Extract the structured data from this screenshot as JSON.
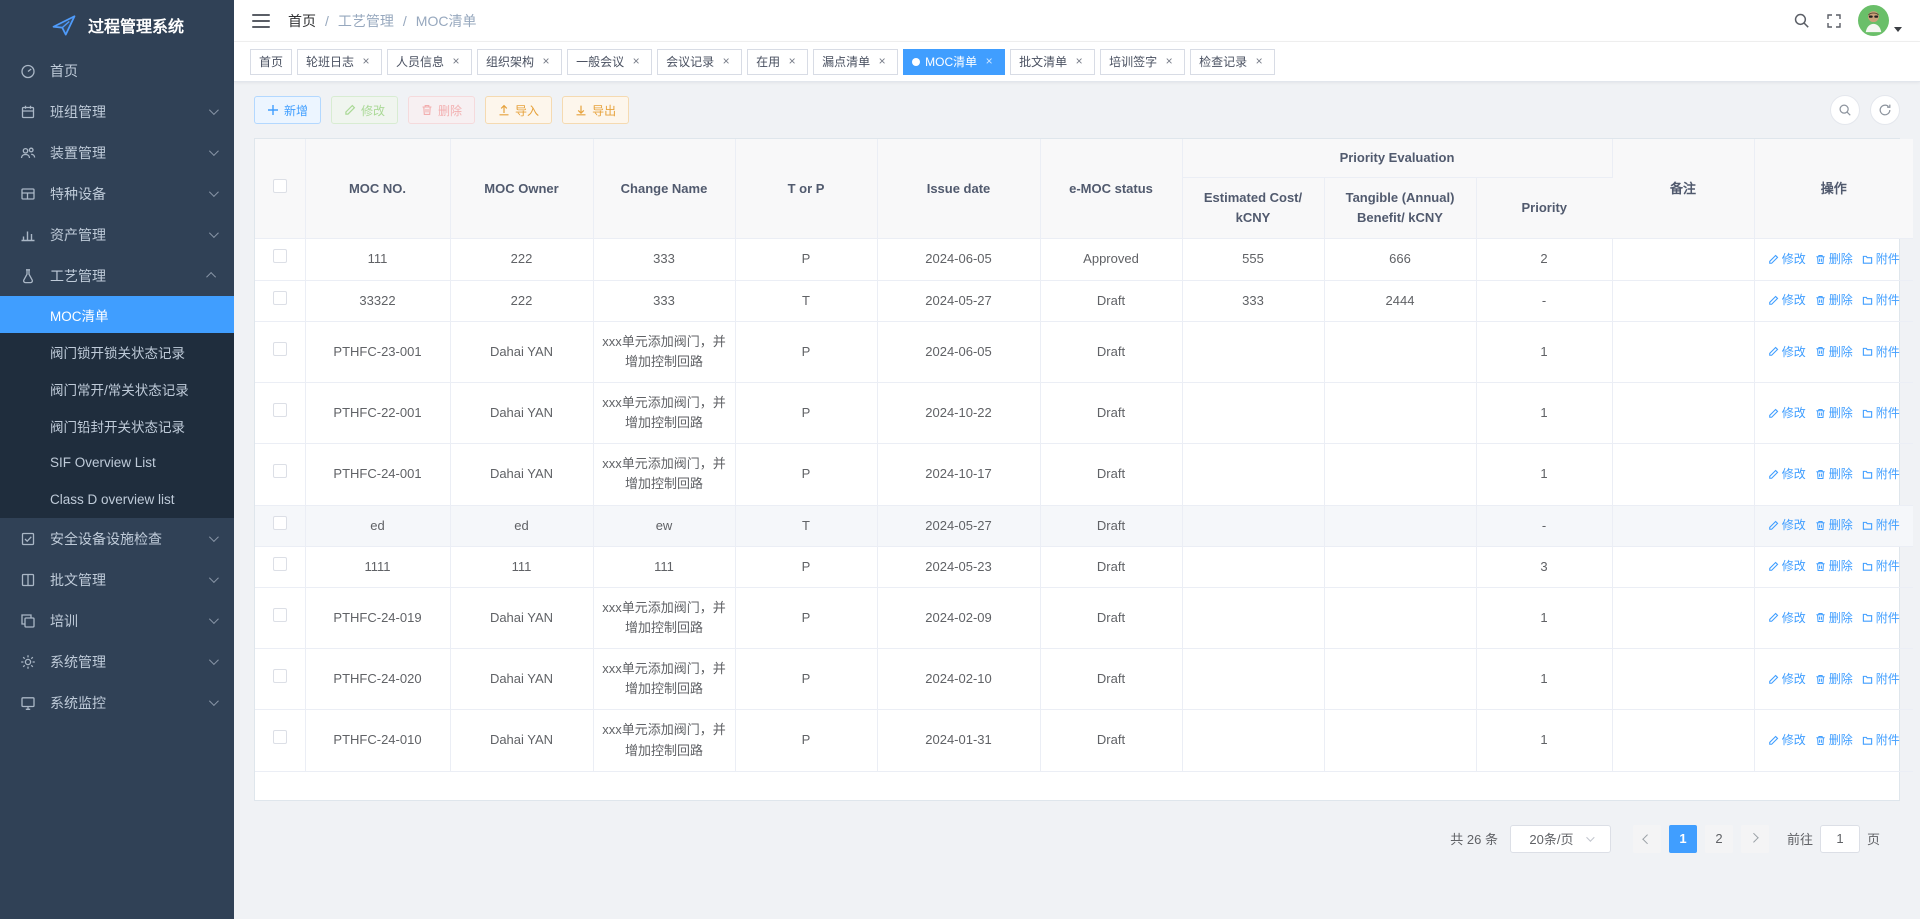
{
  "app": {
    "title": "过程管理系统"
  },
  "colors": {
    "accent": "#409eff",
    "sidebar_bg": "#304156",
    "submenu_bg": "#1f2d3d",
    "success": "#67c23a",
    "danger": "#f56c6c",
    "warning": "#e6a23c",
    "avatar_bg": "#6abf69"
  },
  "icons": [
    "logo-plane-icon",
    "dashboard-icon",
    "team-icon",
    "device-icon",
    "special-equipment-icon",
    "asset-icon",
    "process-icon",
    "safety-check-icon",
    "approval-icon",
    "training-icon",
    "settings-icon",
    "monitor-icon",
    "hamburger-icon",
    "search-icon",
    "fullscreen-icon",
    "avatar",
    "caret-down-icon",
    "plus-icon",
    "edit-icon",
    "delete-icon",
    "upload-icon",
    "download-icon",
    "refresh-icon",
    "folder-icon"
  ],
  "sidebar": {
    "items": [
      {
        "label": "首页"
      },
      {
        "label": "班组管理"
      },
      {
        "label": "装置管理"
      },
      {
        "label": "特种设备"
      },
      {
        "label": "资产管理"
      },
      {
        "label": "工艺管理",
        "expanded": true,
        "children": [
          "MOC清单",
          "阀门锁开锁关状态记录",
          "阀门常开/常关状态记录",
          "阀门铅封开关状态记录",
          "SIF Overview List",
          "Class D overview list"
        ],
        "active_child": "MOC清单"
      },
      {
        "label": "安全设备设施检查"
      },
      {
        "label": "批文管理"
      },
      {
        "label": "培训"
      },
      {
        "label": "系统管理"
      },
      {
        "label": "系统监控"
      }
    ]
  },
  "breadcrumb": {
    "items": [
      "首页",
      "工艺管理",
      "MOC清单"
    ],
    "separator": "/"
  },
  "tabs": [
    {
      "label": "首页",
      "closable": false,
      "active": false
    },
    {
      "label": "轮班日志",
      "closable": true,
      "active": false
    },
    {
      "label": "人员信息",
      "closable": true,
      "active": false
    },
    {
      "label": "组织架构",
      "closable": true,
      "active": false
    },
    {
      "label": "一般会议",
      "closable": true,
      "active": false
    },
    {
      "label": "会议记录",
      "closable": true,
      "active": false
    },
    {
      "label": "在用",
      "closable": true,
      "active": false
    },
    {
      "label": "漏点清单",
      "closable": true,
      "active": false
    },
    {
      "label": "MOC清单",
      "closable": true,
      "active": true
    },
    {
      "label": "批文清单",
      "closable": true,
      "active": false
    },
    {
      "label": "培训签字",
      "closable": true,
      "active": false
    },
    {
      "label": "检查记录",
      "closable": true,
      "active": false
    }
  ],
  "toolbar": {
    "add": "新增",
    "edit": "修改",
    "delete": "删除",
    "import": "导入",
    "export": "导出"
  },
  "table": {
    "columns": {
      "moc_no": "MOC NO.",
      "owner": "MOC Owner",
      "change_name": "Change Name",
      "t_or_p": "T or P",
      "issue_date": "Issue date",
      "status": "e-MOC status",
      "priority_group": "Priority Evaluation",
      "est_cost": "Estimated Cost/ kCNY",
      "benefit": "Tangible (Annual) Benefit/ kCNY",
      "priority": "Priority",
      "remark": "备注",
      "actions": "操作"
    },
    "action_labels": [
      "修改",
      "删除",
      "附件"
    ],
    "rows": [
      {
        "moc_no": "111",
        "owner": "222",
        "change_name": "333",
        "t_or_p": "P",
        "issue_date": "2024-06-05",
        "status": "Approved",
        "est_cost": "555",
        "benefit": "666",
        "priority": "2",
        "remark": "",
        "highlighted": false
      },
      {
        "moc_no": "33322",
        "owner": "222",
        "change_name": "333",
        "t_or_p": "T",
        "issue_date": "2024-05-27",
        "status": "Draft",
        "est_cost": "333",
        "benefit": "2444",
        "priority": "-",
        "remark": "",
        "highlighted": false
      },
      {
        "moc_no": "PTHFC-23-001",
        "owner": "Dahai YAN",
        "change_name": "xxx单元添加阀门，并增加控制回路",
        "t_or_p": "P",
        "issue_date": "2024-06-05",
        "status": "Draft",
        "est_cost": "",
        "benefit": "",
        "priority": "1",
        "remark": "",
        "highlighted": false
      },
      {
        "moc_no": "PTHFC-22-001",
        "owner": "Dahai YAN",
        "change_name": "xxx单元添加阀门，并增加控制回路",
        "t_or_p": "P",
        "issue_date": "2024-10-22",
        "status": "Draft",
        "est_cost": "",
        "benefit": "",
        "priority": "1",
        "remark": "",
        "highlighted": false
      },
      {
        "moc_no": "PTHFC-24-001",
        "owner": "Dahai YAN",
        "change_name": "xxx单元添加阀门，并增加控制回路",
        "t_or_p": "P",
        "issue_date": "2024-10-17",
        "status": "Draft",
        "est_cost": "",
        "benefit": "",
        "priority": "1",
        "remark": "",
        "highlighted": false
      },
      {
        "moc_no": "ed",
        "owner": "ed",
        "change_name": "ew",
        "t_or_p": "T",
        "issue_date": "2024-05-27",
        "status": "Draft",
        "est_cost": "",
        "benefit": "",
        "priority": "-",
        "remark": "",
        "highlighted": true
      },
      {
        "moc_no": "1111",
        "owner": "111",
        "change_name": "111",
        "t_or_p": "P",
        "issue_date": "2024-05-23",
        "status": "Draft",
        "est_cost": "",
        "benefit": "",
        "priority": "3",
        "remark": "",
        "highlighted": false
      },
      {
        "moc_no": "PTHFC-24-019",
        "owner": "Dahai YAN",
        "change_name": "xxx单元添加阀门，并增加控制回路",
        "t_or_p": "P",
        "issue_date": "2024-02-09",
        "status": "Draft",
        "est_cost": "",
        "benefit": "",
        "priority": "1",
        "remark": "",
        "highlighted": false
      },
      {
        "moc_no": "PTHFC-24-020",
        "owner": "Dahai YAN",
        "change_name": "xxx单元添加阀门，并增加控制回路",
        "t_or_p": "P",
        "issue_date": "2024-02-10",
        "status": "Draft",
        "est_cost": "",
        "benefit": "",
        "priority": "1",
        "remark": "",
        "highlighted": false
      },
      {
        "moc_no": "PTHFC-24-010",
        "owner": "Dahai YAN",
        "change_name": "xxx单元添加阀门，并增加控制回路",
        "t_or_p": "P",
        "issue_date": "2024-01-31",
        "status": "Draft",
        "est_cost": "",
        "benefit": "",
        "priority": "1",
        "remark": "",
        "highlighted": false
      }
    ]
  },
  "pagination": {
    "total": "共 26 条",
    "page_size": "20条/页",
    "pages": [
      "1",
      "2"
    ],
    "active_page": "1",
    "goto_label": "前往",
    "goto_value": "1",
    "goto_suffix": "页"
  }
}
